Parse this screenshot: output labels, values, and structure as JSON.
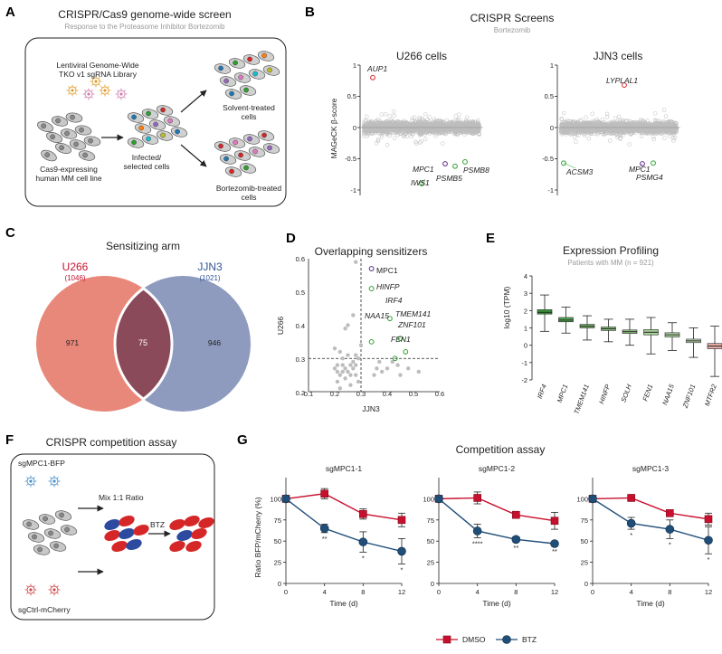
{
  "panels": {
    "A": {
      "letter": "A",
      "title": "CRISPR/Cas9 genome-wide screen",
      "subtitle": "Response to the Proteasome Inhibitor Bortezomib",
      "library_line1": "Lentiviral Genome-Wide",
      "library_line2": "TKO v1 sgRNA Library",
      "cells_line1": "Cas9-expressing",
      "cells_line2": "human MM cell line",
      "infected_line1": "Infected/",
      "infected_line2": "selected cells",
      "solvent_line1": "Solvent-treated",
      "solvent_line2": "cells",
      "btz_line1": "Bortezomib-treated",
      "btz_line2": "cells"
    },
    "B": {
      "letter": "B",
      "title": "CRISPR Screens",
      "subtitle": "Bortezomib",
      "ylabel": "MAGeCK β-score",
      "yticks": [
        "1",
        "0.5",
        "0",
        "-0.5",
        "-1"
      ],
      "plots": [
        {
          "name": "U266 cells",
          "genes": [
            {
              "label": "AUP1",
              "color": "#d62728"
            },
            {
              "label": "MPC1",
              "color": "#5b2a86"
            },
            {
              "label": "PSMB8",
              "color": "#2ca02c"
            },
            {
              "label": "PSMB5",
              "color": "#2ca02c"
            },
            {
              "label": "IWS1",
              "color": "#2ca02c"
            }
          ]
        },
        {
          "name": "JJN3 cells",
          "genes": [
            {
              "label": "LYPLAL1",
              "color": "#d62728"
            },
            {
              "label": "ACSM3",
              "color": "#2ca02c"
            },
            {
              "label": "MPC1",
              "color": "#5b2a86"
            },
            {
              "label": "PSMG4",
              "color": "#2ca02c"
            }
          ]
        }
      ]
    },
    "C": {
      "letter": "C",
      "title": "Sensitizing arm",
      "left_name": "U266",
      "left_count": "(1046)",
      "right_name": "JJN3",
      "right_count": "(1021)",
      "left_only": "971",
      "overlap": "75",
      "right_only": "946",
      "left_color": "#e8887a",
      "right_color": "#8e9bbf",
      "overlap_color": "#8b4a5a"
    },
    "D": {
      "letter": "D",
      "title": "Overlapping sensitizers",
      "xlabel": "JJN3",
      "ylabel": "U266",
      "xticks": [
        "0.1",
        "0.2",
        "0.3",
        "0.4",
        "0.5",
        "0.6"
      ],
      "yticks": [
        "0.6",
        "0.5",
        "0.4",
        "0.3",
        "0.2"
      ],
      "highlight": [
        {
          "label": "MPC1",
          "color": "#5b2a86"
        },
        {
          "label": "HINFP",
          "color": "#2ca02c"
        },
        {
          "label": "IRF4",
          "color": "#2ca02c"
        },
        {
          "label": "TMEM141",
          "color": "#2ca02c"
        },
        {
          "label": "NAA15",
          "color": "#2ca02c"
        },
        {
          "label": "ZNF101",
          "color": "#2ca02c"
        },
        {
          "label": "FEN1",
          "color": "#2ca02c"
        }
      ]
    },
    "E": {
      "letter": "E",
      "title": "Expression Profiling",
      "subtitle": "Patients with MM (n = 921)",
      "ylabel": "log10 (TPM)",
      "yticks": [
        "4",
        "3",
        "2",
        "1",
        "0",
        "-1",
        "-2"
      ],
      "genes": [
        {
          "label": "IRF4",
          "color": "#3a9a3a",
          "label_color": "#222"
        },
        {
          "label": "MPC1",
          "color": "#55aa55",
          "label_color": "#3a6ea5"
        },
        {
          "label": "TMEM141",
          "color": "#77bb66",
          "label_color": "#222"
        },
        {
          "label": "HINFP",
          "color": "#88c477",
          "label_color": "#222"
        },
        {
          "label": "SOLH",
          "color": "#99cc88",
          "label_color": "#222"
        },
        {
          "label": "FEN1",
          "color": "#a8d498",
          "label_color": "#222"
        },
        {
          "label": "NAA15",
          "color": "#b5dba8",
          "label_color": "#222"
        },
        {
          "label": "ZNF101",
          "color": "#c6e3bb",
          "label_color": "#222"
        },
        {
          "label": "MTFR2",
          "color": "#e8b0a8",
          "label_color": "#222"
        }
      ]
    },
    "F": {
      "letter": "F",
      "title": "CRISPR competition assay",
      "top_label": "sgMPC1-BFP",
      "bottom_label": "sgCtrl-mCherry",
      "mix_label": "Mix 1:1 Ratio",
      "btz_label": "BTZ"
    },
    "G": {
      "letter": "G",
      "title": "Competition assay",
      "ylabel": "Ratio BFP/mCherry (%)",
      "xlabel": "Time (d)",
      "xticks": [
        "0",
        "4",
        "8",
        "12"
      ],
      "yticks": [
        "100",
        "75",
        "50",
        "25",
        "0"
      ],
      "legend": [
        {
          "label": "DMSO",
          "color": "#c8102e"
        },
        {
          "label": "BTZ",
          "color": "#1f4e79"
        }
      ],
      "significance": [
        {
          "plot": "sgMPC1-1",
          "marks": [
            "**",
            "*",
            "*"
          ]
        },
        {
          "plot": "sgMPC1-2",
          "marks": [
            "****",
            "**",
            "**"
          ]
        },
        {
          "plot": "sgMPC1-3",
          "marks": [
            "*",
            "*",
            "*"
          ]
        }
      ]
    }
  },
  "chart_data": [
    {
      "type": "venn",
      "title": "Sensitizing arm",
      "sets": [
        {
          "name": "U266",
          "size": 1046,
          "only": 971
        },
        {
          "name": "JJN3",
          "size": 1021,
          "only": 946
        }
      ],
      "intersection": 75
    },
    {
      "type": "scatter",
      "title": "Overlapping sensitizers",
      "xlabel": "JJN3",
      "ylabel": "U266",
      "xlim": [
        0.1,
        0.6
      ],
      "ylim": [
        0.2,
        0.6
      ],
      "threshold": 0.3,
      "highlighted": [
        {
          "name": "MPC1",
          "x": 0.34,
          "y": 0.57
        },
        {
          "name": "HINFP",
          "x": 0.34,
          "y": 0.51
        },
        {
          "name": "IRF4",
          "x": 0.41,
          "y": 0.42
        },
        {
          "name": "TMEM141",
          "x": 0.45,
          "y": 0.36
        },
        {
          "name": "NAA15",
          "x": 0.34,
          "y": 0.35
        },
        {
          "name": "ZNF101",
          "x": 0.47,
          "y": 0.32
        },
        {
          "name": "FEN1",
          "x": 0.43,
          "y": 0.3
        }
      ],
      "background": [
        [
          0.2,
          0.33
        ],
        [
          0.21,
          0.28
        ],
        [
          0.22,
          0.25
        ],
        [
          0.23,
          0.3
        ],
        [
          0.24,
          0.27
        ],
        [
          0.25,
          0.26
        ],
        [
          0.26,
          0.22
        ],
        [
          0.27,
          0.29
        ],
        [
          0.28,
          0.28
        ],
        [
          0.21,
          0.23
        ],
        [
          0.22,
          0.32
        ],
        [
          0.23,
          0.26
        ],
        [
          0.24,
          0.24
        ],
        [
          0.25,
          0.31
        ],
        [
          0.26,
          0.28
        ],
        [
          0.27,
          0.27
        ],
        [
          0.28,
          0.25
        ],
        [
          0.29,
          0.3
        ],
        [
          0.2,
          0.27
        ],
        [
          0.22,
          0.21
        ],
        [
          0.24,
          0.39
        ],
        [
          0.25,
          0.4
        ],
        [
          0.27,
          0.43
        ],
        [
          0.28,
          0.59
        ],
        [
          0.3,
          0.34
        ],
        [
          0.29,
          0.23
        ],
        [
          0.23,
          0.28
        ],
        [
          0.26,
          0.25
        ],
        [
          0.21,
          0.26
        ],
        [
          0.28,
          0.31
        ],
        [
          0.36,
          0.27
        ],
        [
          0.38,
          0.26
        ],
        [
          0.4,
          0.27
        ],
        [
          0.42,
          0.29
        ],
        [
          0.44,
          0.28
        ],
        [
          0.48,
          0.27
        ],
        [
          0.52,
          0.26
        ],
        [
          0.35,
          0.25
        ],
        [
          0.45,
          0.25
        ],
        [
          0.37,
          0.29
        ]
      ]
    },
    {
      "type": "box",
      "title": "Expression Profiling",
      "ylabel": "log10 (TPM)",
      "ylim": [
        -2,
        4
      ],
      "boxes": [
        {
          "name": "IRF4",
          "min": 0.8,
          "q1": 1.8,
          "median": 1.9,
          "q3": 2.05,
          "max": 2.9
        },
        {
          "name": "MPC1",
          "min": 0.7,
          "q1": 1.35,
          "median": 1.45,
          "q3": 1.6,
          "max": 2.2
        },
        {
          "name": "TMEM141",
          "min": 0.3,
          "q1": 1.0,
          "median": 1.1,
          "q3": 1.2,
          "max": 1.7
        },
        {
          "name": "HINFP",
          "min": 0.2,
          "q1": 0.85,
          "median": 0.95,
          "q3": 1.05,
          "max": 1.5
        },
        {
          "name": "SOLH",
          "min": 0.0,
          "q1": 0.68,
          "median": 0.78,
          "q3": 0.88,
          "max": 1.5
        },
        {
          "name": "FEN1",
          "min": -0.5,
          "q1": 0.6,
          "median": 0.75,
          "q3": 0.9,
          "max": 1.6
        },
        {
          "name": "NAA15",
          "min": -0.3,
          "q1": 0.48,
          "median": 0.6,
          "q3": 0.72,
          "max": 1.3
        },
        {
          "name": "ZNF101",
          "min": -0.7,
          "q1": 0.15,
          "median": 0.25,
          "q3": 0.35,
          "max": 1.0
        },
        {
          "name": "MTFR2",
          "min": -1.8,
          "q1": -0.2,
          "median": -0.05,
          "q3": 0.1,
          "max": 1.1
        }
      ]
    },
    {
      "type": "line",
      "title": "sgMPC1-1",
      "x": [
        0,
        4,
        8,
        12
      ],
      "xlabel": "Time (d)",
      "ylabel": "Ratio BFP/mCherry (%)",
      "ylim": [
        0,
        125
      ],
      "series": [
        {
          "name": "DMSO",
          "values": [
            100,
            106,
            82,
            75
          ],
          "err": [
            0,
            6,
            6,
            8
          ]
        },
        {
          "name": "BTZ",
          "values": [
            100,
            65,
            49,
            38
          ],
          "err": [
            0,
            5,
            12,
            15
          ]
        }
      ]
    },
    {
      "type": "line",
      "title": "sgMPC1-2",
      "x": [
        0,
        4,
        8,
        12
      ],
      "xlabel": "Time (d)",
      "ylabel": "Ratio BFP/mCherry (%)",
      "ylim": [
        0,
        125
      ],
      "series": [
        {
          "name": "DMSO",
          "values": [
            100,
            101,
            81,
            74
          ],
          "err": [
            0,
            7,
            2,
            10
          ]
        },
        {
          "name": "BTZ",
          "values": [
            100,
            62,
            52,
            47
          ],
          "err": [
            0,
            8,
            3,
            2
          ]
        }
      ]
    },
    {
      "type": "line",
      "title": "sgMPC1-3",
      "x": [
        0,
        4,
        8,
        12
      ],
      "xlabel": "Time (d)",
      "ylabel": "Ratio BFP/mCherry (%)",
      "ylim": [
        0,
        125
      ],
      "series": [
        {
          "name": "DMSO",
          "values": [
            100,
            101,
            83,
            76
          ],
          "err": [
            0,
            3,
            3,
            7
          ]
        },
        {
          "name": "BTZ",
          "values": [
            100,
            71,
            64,
            51
          ],
          "err": [
            0,
            7,
            11,
            16
          ]
        }
      ]
    }
  ]
}
